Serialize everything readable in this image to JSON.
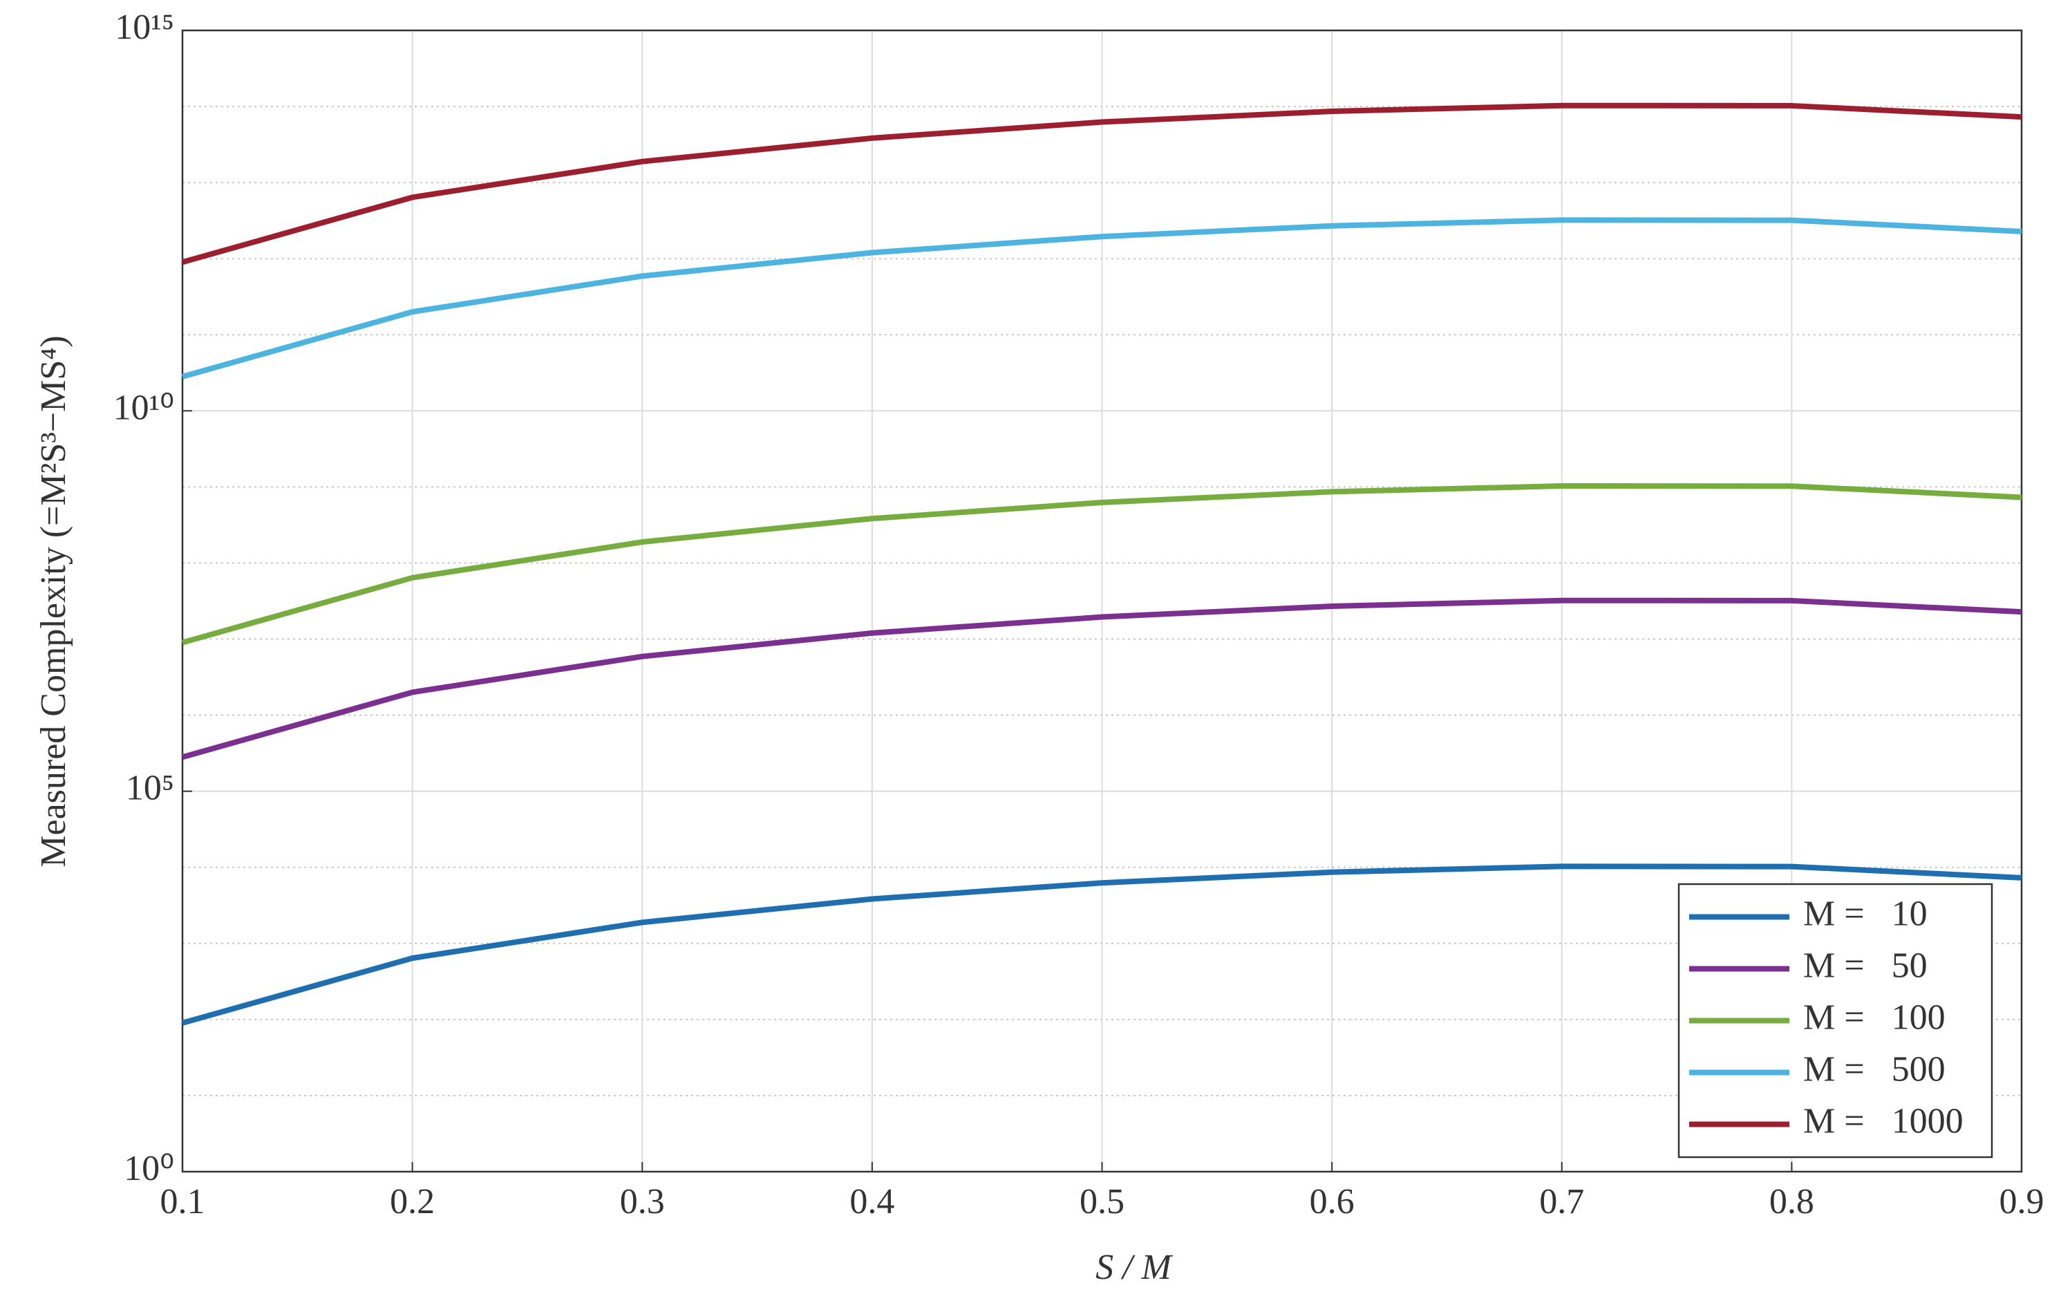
{
  "chart_data": {
    "type": "line",
    "x_label": "S / M",
    "y_label": "Measured Complexity (=M²S³−MS⁴)",
    "x": [
      0.1,
      0.2,
      0.3,
      0.4,
      0.5,
      0.6,
      0.7,
      0.8,
      0.9
    ],
    "xlim": [
      0.1,
      0.9
    ],
    "xticks": [
      0.1,
      0.2,
      0.3,
      0.4,
      0.5,
      0.6,
      0.7,
      0.8,
      0.9
    ],
    "ylim": [
      1,
      1000000000000000.0
    ],
    "yticks": [
      {
        "value": 1,
        "label": "10⁰"
      },
      {
        "value": 100000,
        "label": "10⁵"
      },
      {
        "value": 10000000000,
        "label": "10¹⁰"
      },
      {
        "value": 1000000000000000,
        "label": "10¹⁵"
      }
    ],
    "y_scale": "log",
    "grid": true,
    "legend": "lower right",
    "series": [
      {
        "name": "M =   10",
        "color": "#1f6fb0",
        "values": [
          90,
          640,
          1890,
          3840,
          6250,
          8640,
          10290,
          10240,
          7290
        ]
      },
      {
        "name": "M =   50",
        "color": "#7b2f8e",
        "values": [
          281250,
          2000000,
          5906250,
          12000000,
          19531250,
          27000000,
          32156250,
          32000000,
          22781250
        ]
      },
      {
        "name": "M =   100",
        "color": "#77ac3f",
        "values": [
          9000000,
          64000000,
          189000000,
          384000000,
          625000000,
          864000000,
          1029000000,
          1024000000,
          729000000
        ]
      },
      {
        "name": "M =   500",
        "color": "#4db4e0",
        "values": [
          28125000000,
          200000000000,
          590625000000,
          1200000000000,
          1953125000000,
          2700000000000,
          3215625000000,
          3200000000000,
          2278125000000
        ]
      },
      {
        "name": "M =   1000",
        "color": "#9c1f30",
        "values": [
          900000000000,
          6400000000000,
          18900000000000,
          38400000000000,
          62500000000000,
          86400000000000,
          102900000000000,
          102400000000000,
          72900000000000
        ]
      }
    ]
  }
}
